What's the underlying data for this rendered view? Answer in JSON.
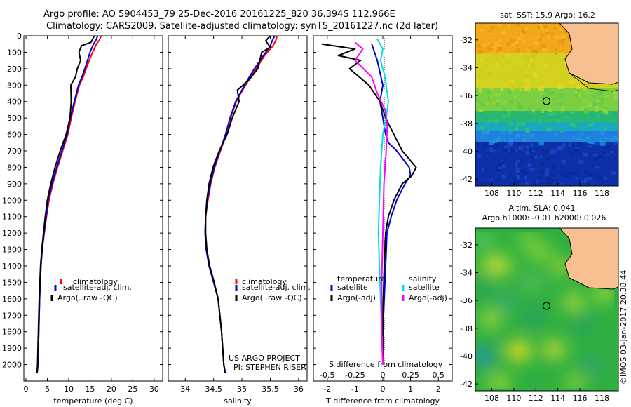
{
  "header": {
    "line1": "Argo profile: AO 5904453_79 25-Dec-2016 20161225_820 36.394S 112.966E",
    "line2": "Climatology: CARS2009. Satellite-adjusted climatology: synTS_20161227.nc (2d later)"
  },
  "colors": {
    "climatology": "#ff0000",
    "satellite": "#0000dd",
    "argo": "#000000",
    "sat_salinity": "#00e0e0",
    "argo_salinity": "#ff00ff",
    "land": "#f8c090",
    "marker": "#000000"
  },
  "chart_data": [
    {
      "type": "line",
      "panel": "temperature",
      "xlabel": "temperature (deg C)",
      "ylabel": "",
      "xlim": [
        -0.5,
        32
      ],
      "ylim": [
        2100,
        0
      ],
      "xticks": [
        0,
        5,
        10,
        15,
        20,
        25,
        30
      ],
      "yticks": [
        0,
        100,
        200,
        300,
        400,
        500,
        600,
        700,
        800,
        900,
        1000,
        1100,
        1200,
        1300,
        1400,
        1500,
        1600,
        1700,
        1800,
        1900,
        2000
      ],
      "legend": [
        "climatology",
        "satellite-adj. clim.",
        "Argo(..raw -QC)"
      ],
      "series": [
        {
          "name": "climatology",
          "x": [
            17.6,
            17.2,
            16.5,
            15.6,
            14.8,
            14.1,
            13.4,
            12.5,
            11.5,
            10.6,
            9.8,
            8.6,
            7.4,
            6.3,
            5.4,
            4.8,
            4.3,
            3.8,
            3.5,
            3.2,
            3.0,
            2.8,
            2.6
          ],
          "y": [
            0,
            25,
            50,
            100,
            150,
            200,
            250,
            300,
            400,
            500,
            600,
            700,
            800,
            900,
            1000,
            1100,
            1200,
            1300,
            1400,
            1600,
            1800,
            2000,
            2050
          ]
        },
        {
          "name": "satellite-adj. clim.",
          "x": [
            16.8,
            16.4,
            15.8,
            15.0,
            14.4,
            13.8,
            13.1,
            12.3,
            11.3,
            10.4,
            9.6,
            8.4,
            7.2,
            6.1,
            5.2,
            4.7,
            4.2,
            3.8,
            3.5,
            3.2,
            3.0,
            2.8,
            2.6
          ],
          "y": [
            0,
            25,
            50,
            100,
            150,
            200,
            250,
            300,
            400,
            500,
            600,
            700,
            800,
            900,
            1000,
            1100,
            1200,
            1300,
            1400,
            1600,
            1800,
            2000,
            2050
          ]
        },
        {
          "name": "Argo(..raw -QC)",
          "x": [
            16.0,
            15.2,
            13.0,
            12.4,
            12.8,
            12.0,
            11.6,
            10.5,
            10.6,
            10.3,
            9.4,
            8.0,
            6.8,
            5.8,
            5.0,
            4.5,
            4.1,
            3.7,
            3.4,
            3.1,
            2.9,
            2.7,
            2.6
          ],
          "y": [
            0,
            40,
            60,
            100,
            150,
            200,
            250,
            300,
            400,
            500,
            600,
            700,
            800,
            900,
            1000,
            1100,
            1200,
            1300,
            1400,
            1600,
            1800,
            2000,
            2050
          ]
        }
      ]
    },
    {
      "type": "line",
      "panel": "salinity",
      "xlabel": "salinity",
      "ylabel": "",
      "xlim": [
        33.7,
        36.15
      ],
      "ylim": [
        2100,
        0
      ],
      "xticks": [
        34,
        34.5,
        35,
        35.5,
        36
      ],
      "xticklabels": [
        "34",
        "34.5",
        "35",
        "35.5",
        "36"
      ],
      "legend": [
        "climatology",
        "satellite-adj. clim.",
        "Argo(..raw -QC)"
      ],
      "annotations": [
        "US ARGO PROJECT",
        "PI: STEPHEN RISER"
      ],
      "series": [
        {
          "name": "climatology",
          "x": [
            35.62,
            35.6,
            35.55,
            35.4,
            35.25,
            35.1,
            34.98,
            34.9,
            34.8,
            34.72,
            34.62,
            34.52,
            34.45,
            34.4,
            34.36,
            34.35,
            34.37,
            34.42,
            34.5,
            34.58,
            34.64,
            34.68,
            34.71
          ],
          "y": [
            0,
            25,
            60,
            120,
            200,
            280,
            350,
            400,
            500,
            600,
            700,
            800,
            900,
            1000,
            1100,
            1200,
            1300,
            1400,
            1500,
            1600,
            1800,
            2000,
            2050
          ]
        },
        {
          "name": "satellite-adj. clim.",
          "x": [
            35.58,
            35.54,
            35.5,
            35.38,
            35.22,
            35.08,
            34.97,
            34.89,
            34.79,
            34.71,
            34.61,
            34.51,
            34.44,
            34.39,
            34.36,
            34.35,
            34.37,
            34.42,
            34.5,
            34.58,
            34.64,
            34.68,
            34.71
          ],
          "y": [
            0,
            25,
            60,
            120,
            200,
            280,
            350,
            400,
            500,
            600,
            700,
            800,
            900,
            1000,
            1100,
            1200,
            1300,
            1400,
            1500,
            1600,
            1800,
            2000,
            2050
          ]
        },
        {
          "name": "Argo(..raw -QC)",
          "x": [
            35.5,
            35.42,
            35.5,
            35.35,
            35.28,
            35.12,
            34.92,
            34.95,
            34.83,
            34.74,
            34.6,
            34.49,
            34.42,
            34.38,
            34.36,
            34.36,
            34.38,
            34.43,
            34.51,
            34.58,
            34.64,
            34.68,
            34.7
          ],
          "y": [
            0,
            30,
            70,
            100,
            200,
            270,
            330,
            400,
            500,
            600,
            700,
            800,
            900,
            1000,
            1100,
            1200,
            1300,
            1400,
            1500,
            1600,
            1800,
            2000,
            2050
          ]
        }
      ]
    },
    {
      "type": "line",
      "panel": "difference",
      "xlabel": "T difference from climatology",
      "x2label": "S difference from climatology",
      "ylabel": "",
      "xlim": [
        -2.5,
        2.5
      ],
      "ylim": [
        2100,
        0
      ],
      "xticks": [
        -2,
        -1,
        0,
        1,
        2
      ],
      "x2ticks": [
        -0.5,
        -0.25,
        0,
        0.25,
        0.5
      ],
      "x2ticklabels": [
        "-0.5",
        "-0.25",
        "0",
        "0.25",
        "0.5"
      ],
      "legend_titles": [
        "temperature",
        "salinity"
      ],
      "legend": [
        "satellite",
        "Argo(-adj)",
        "satellite",
        "Argo(-adj)"
      ],
      "series": [
        {
          "name": "satellite",
          "quantity": "temperature",
          "x": [
            -0.4,
            -0.2,
            0.0,
            -0.1,
            0.0,
            0.05,
            0.1,
            0.2,
            0.5,
            0.95,
            1.0,
            0.8,
            0.5,
            0.3,
            0.15,
            0.1,
            0.05,
            0.0,
            0.0
          ],
          "y": [
            50,
            150,
            300,
            400,
            500,
            550,
            600,
            650,
            700,
            800,
            850,
            900,
            1000,
            1100,
            1200,
            1400,
            1600,
            1800,
            2000
          ]
        },
        {
          "name": "Argo(-adj)",
          "quantity": "temperature",
          "x": [
            -2.2,
            -1.0,
            -1.6,
            -0.8,
            -1.2,
            -0.5,
            -0.1,
            0.1,
            0.4,
            0.7,
            1.2,
            1.05,
            0.7,
            0.4,
            0.2,
            0.1,
            0.05,
            0.0,
            0.0
          ],
          "y": [
            50,
            80,
            120,
            150,
            200,
            300,
            400,
            500,
            600,
            700,
            800,
            850,
            900,
            1000,
            1100,
            1200,
            1400,
            1700,
            2000
          ]
        },
        {
          "name": "satellite",
          "quantity": "salinity",
          "x": [
            -0.05,
            0.0,
            -0.02,
            0.02,
            0.05,
            0.03,
            0.0,
            -0.02,
            -0.03,
            -0.04,
            -0.03,
            -0.02,
            -0.01,
            0.0
          ],
          "y": [
            20,
            80,
            150,
            250,
            400,
            500,
            600,
            800,
            1000,
            1200,
            1400,
            1600,
            1800,
            2000
          ]
        },
        {
          "name": "Argo(-adj)",
          "quantity": "salinity",
          "x": [
            -0.25,
            -0.18,
            -0.25,
            -0.1,
            -0.05,
            0.02,
            0.04,
            0.03,
            0.01,
            0.0,
            -0.01,
            -0.01,
            0.0
          ],
          "y": [
            40,
            80,
            150,
            250,
            350,
            450,
            550,
            700,
            900,
            1200,
            1500,
            1800,
            2000
          ]
        }
      ]
    },
    {
      "type": "heatmap",
      "panel": "sst_map",
      "title": "sat. SST: 15.9 Argo: 16.2",
      "xlim": [
        106.5,
        119.5
      ],
      "ylim": [
        -42.5,
        -30.8
      ],
      "xticks": [
        108,
        110,
        112,
        114,
        116,
        118
      ],
      "yticks": [
        -32,
        -34,
        -36,
        -38,
        -40,
        -42
      ],
      "argo_position": {
        "lon": 112.966,
        "lat": -36.394
      }
    },
    {
      "type": "heatmap",
      "panel": "sla_map",
      "title": "Altim. SLA: 0.041",
      "subtitle": "Argo h1000: -0.01 h2000: 0.026",
      "xlim": [
        106.5,
        119.5
      ],
      "ylim": [
        -42.5,
        -30.8
      ],
      "xticks": [
        108,
        110,
        112,
        114,
        116,
        118
      ],
      "yticks": [
        -32,
        -34,
        -36,
        -38,
        -40,
        -42
      ],
      "argo_position": {
        "lon": 112.966,
        "lat": -36.394
      }
    }
  ],
  "footer": {
    "stamp": "©IMOS 03-Jan-2017 20:38:44"
  }
}
